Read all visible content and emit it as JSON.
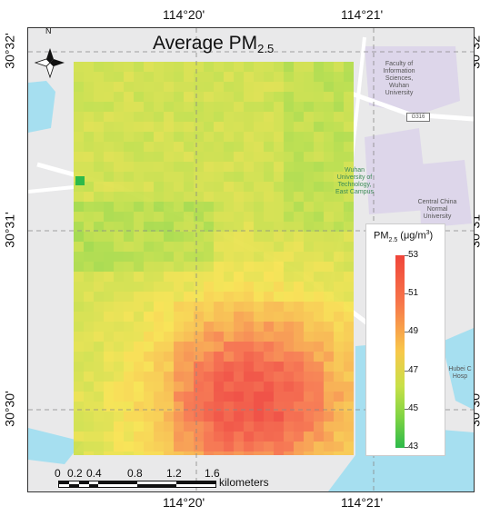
{
  "map": {
    "title_main": "Average PM",
    "title_sub": "2.5",
    "coords": {
      "lon_left": "114°20'",
      "lon_right": "114°21'",
      "lat_top": "30°32'",
      "lat_mid": "30°31'",
      "lat_bottom": "30°30'"
    },
    "north_label": "N",
    "place_labels": {
      "faculty": [
        "Faculty of",
        "Information",
        "Sciences,",
        "Wuhan",
        "University"
      ],
      "road": "G316",
      "wut": [
        "Wuhan",
        "University of",
        "Technology,",
        "East Campus"
      ],
      "ccnu": [
        "Central China",
        "Normal",
        "University"
      ],
      "hubei": [
        "Hubei C",
        "Hosp"
      ]
    },
    "legend": {
      "title_main": "PM",
      "title_sub": "2.5",
      "title_unit": "(μg/m",
      "title_unit_sup": "3",
      "title_close": ")",
      "ticks": [
        "53",
        "51",
        "49",
        "47",
        "45",
        "43"
      ]
    },
    "scale": {
      "ticks": [
        "0",
        "0.2",
        "0.4",
        "0.8",
        "1.2",
        "1.6"
      ],
      "unit": "kilometers"
    },
    "colors": {
      "high": "#f0453a",
      "mid": "#f8c84a",
      "low": "#2dba4a",
      "water": "#a6dff0",
      "background": "#e9e9ea"
    }
  }
}
